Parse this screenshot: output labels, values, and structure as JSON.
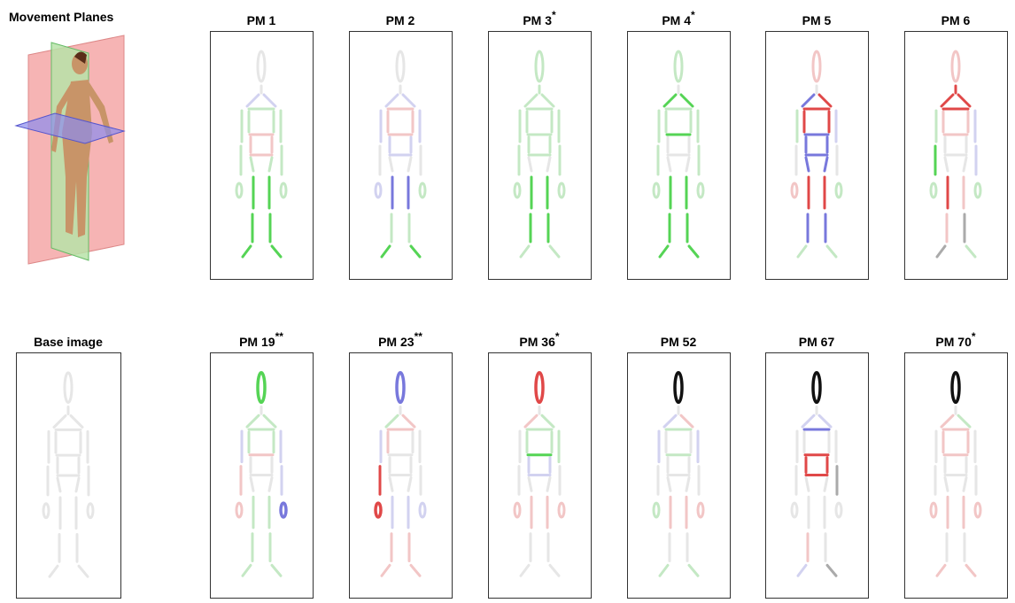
{
  "labels": {
    "movement_planes": "Movement Planes",
    "base_image": "Base image"
  },
  "panels": [
    {
      "title": "PM 1"
    },
    {
      "title": "PM 2"
    },
    {
      "title": "PM 3",
      "mark": "*"
    },
    {
      "title": "PM 4",
      "mark": "*"
    },
    {
      "title": "PM 5"
    },
    {
      "title": "PM 6"
    },
    {
      "title": "PM 19",
      "mark": "**"
    },
    {
      "title": "PM 23",
      "mark": "**"
    },
    {
      "title": "PM 36",
      "mark": "*"
    },
    {
      "title": "PM 52"
    },
    {
      "title": "PM 67"
    },
    {
      "title": "PM 70",
      "mark": "*"
    }
  ]
}
